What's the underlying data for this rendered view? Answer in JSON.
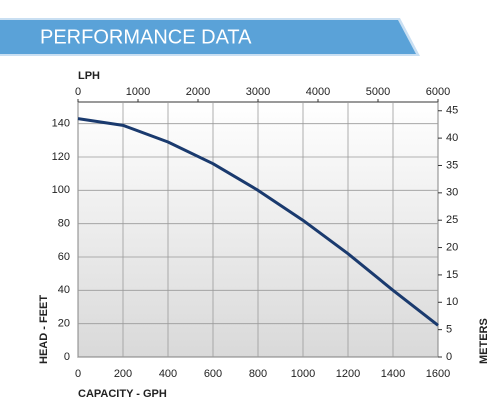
{
  "chart_data": {
    "type": "line",
    "title": "PERFORMANCE DATA",
    "x_label": "CAPACITY - GPH",
    "x2_label": "LPH",
    "y_label": "HEAD - FEET",
    "y2_label": "METERS",
    "x": [
      0,
      200,
      400,
      600,
      800,
      1000,
      1200,
      1400,
      1600
    ],
    "series": [
      {
        "color": "#1a3a6e",
        "values": [
          143,
          139,
          129,
          116,
          100,
          82,
          62,
          40,
          19
        ]
      }
    ],
    "xlim": [
      0,
      1600
    ],
    "xticks": [
      0,
      200,
      400,
      600,
      800,
      1000,
      1200,
      1400,
      1600
    ],
    "x2lim": [
      0,
      6000
    ],
    "x2ticks": [
      0,
      1000,
      2000,
      3000,
      4000,
      5000,
      6000
    ],
    "ylim": [
      0,
      153
    ],
    "yticks": [
      0,
      20,
      40,
      60,
      80,
      100,
      120,
      140
    ],
    "y2lim": [
      0,
      46.6
    ],
    "y2ticks": [
      0,
      5,
      10,
      15,
      20,
      25,
      30,
      35,
      40,
      45
    ],
    "grid": true
  }
}
